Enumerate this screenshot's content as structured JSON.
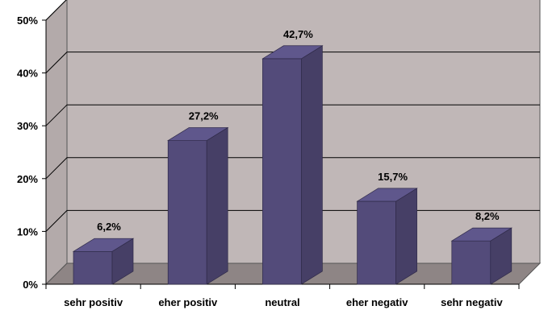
{
  "chart_data": {
    "type": "bar",
    "three_d": true,
    "categories": [
      "sehr positiv",
      "eher positiv",
      "neutral",
      "eher negativ",
      "sehr negativ"
    ],
    "values": [
      6.2,
      27.2,
      42.7,
      15.7,
      8.2
    ],
    "data_labels": [
      "6,2%",
      "27,2%",
      "42,7%",
      "15,7%",
      "8,2%"
    ],
    "ylim": [
      0,
      50
    ],
    "y_ticks": [
      0,
      10,
      20,
      30,
      40,
      50
    ],
    "y_tick_labels": [
      "0%",
      "10%",
      "20%",
      "30%",
      "40%",
      "50%"
    ],
    "grid": true,
    "legend": "none",
    "title": "",
    "xlabel": "",
    "ylabel": "",
    "colors": {
      "bar_front": "#534b7a",
      "bar_side": "#463f66",
      "bar_top": "#5f578c",
      "plot_back": "#c0b7b7",
      "plot_side": "#b3aaaa",
      "floor": "#8e8585",
      "gridline": "#000000"
    }
  }
}
